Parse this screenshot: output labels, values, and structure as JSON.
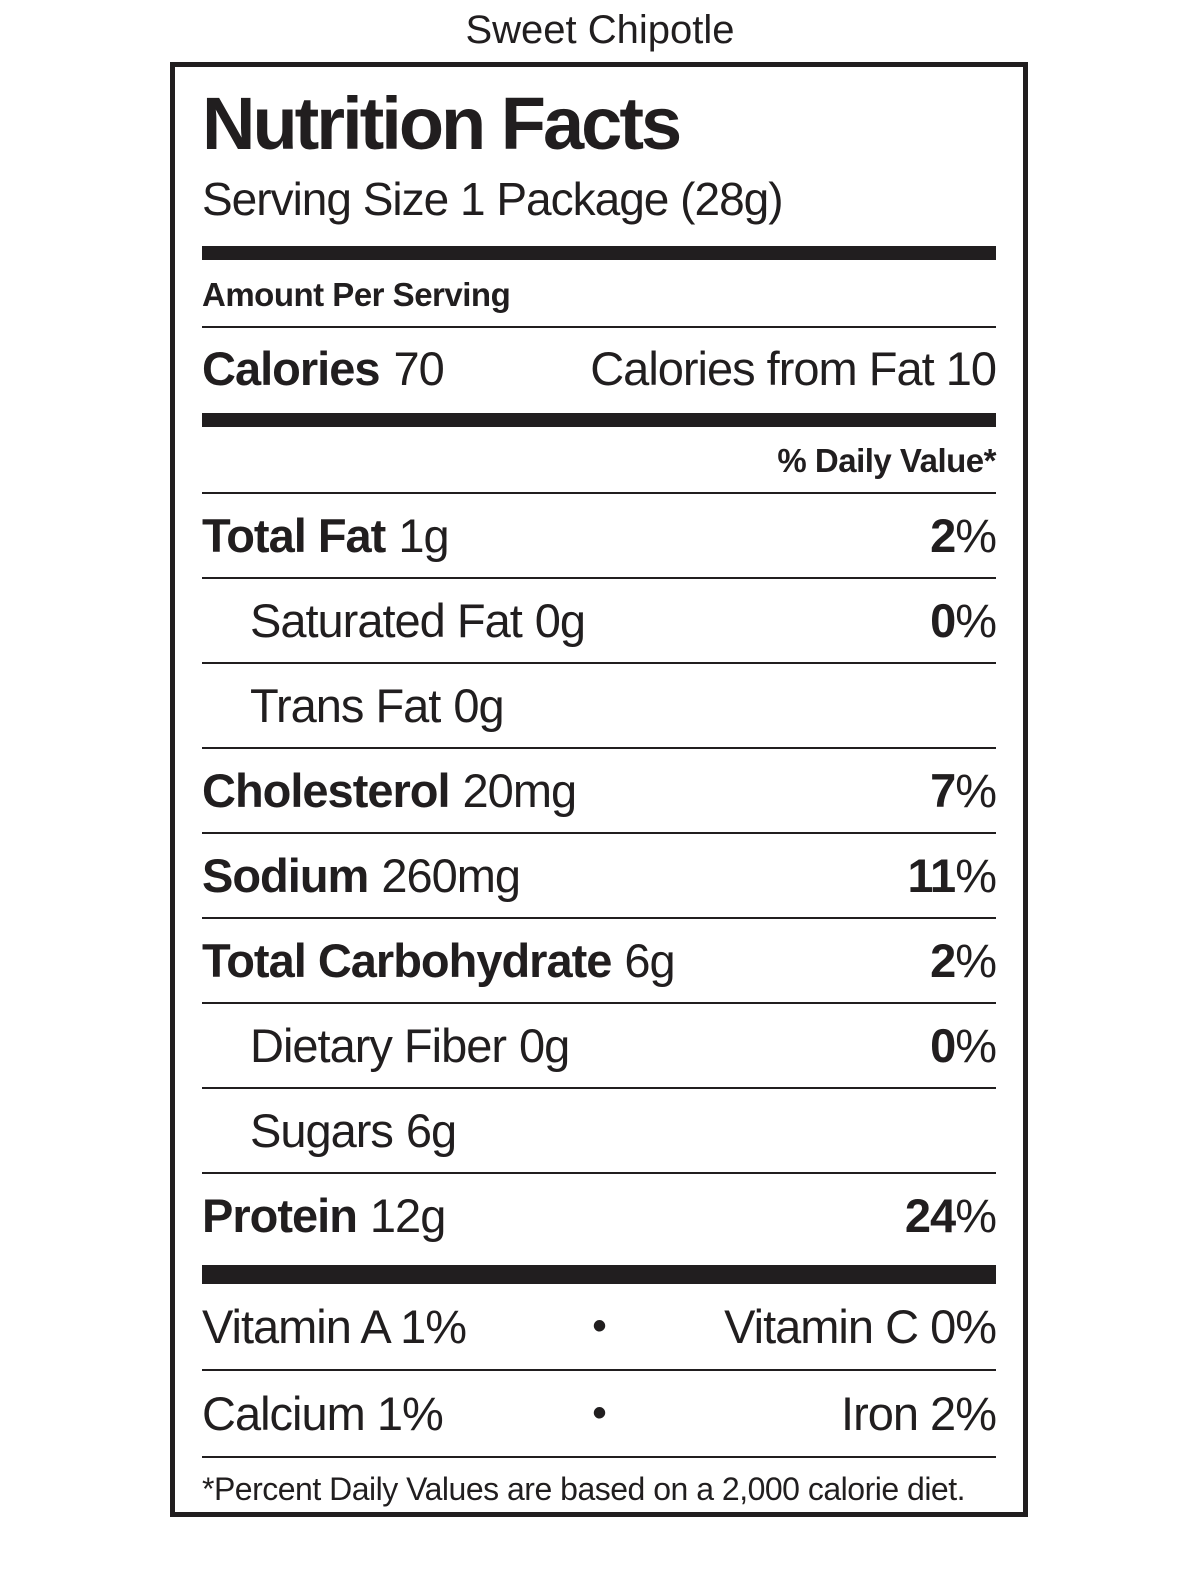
{
  "colors": {
    "ink": "#211e1f",
    "background": "#ffffff"
  },
  "flavor_title": "Sweet Chipotle",
  "label": {
    "title": "Nutrition Facts",
    "serving_size": "Serving Size 1 Package (28g)",
    "amount_per_serving": "Amount Per Serving",
    "calories_label": "Calories",
    "calories_value": "70",
    "calories_from_fat": "Calories from Fat 10",
    "daily_value_header": "% Daily Value*",
    "nutrients": [
      {
        "name": "Total Fat",
        "amount": "1g",
        "dv_num": "2",
        "dv_pct": "%"
      },
      {
        "name": "Saturated Fat",
        "amount": "0g",
        "dv_num": "0",
        "dv_pct": "%"
      },
      {
        "name": "Trans Fat",
        "amount": "0g",
        "dv_num": null,
        "dv_pct": null
      },
      {
        "name": "Cholesterol",
        "amount": "20mg",
        "dv_num": "7",
        "dv_pct": "%"
      },
      {
        "name": "Sodium",
        "amount": "260mg",
        "dv_num": "11",
        "dv_pct": "%"
      },
      {
        "name": "Total Carbohydrate",
        "amount": "6g",
        "dv_num": "2",
        "dv_pct": "%"
      },
      {
        "name": "Dietary Fiber",
        "amount": "0g",
        "dv_num": "0",
        "dv_pct": "%"
      },
      {
        "name": "Sugars",
        "amount": "6g",
        "dv_num": null,
        "dv_pct": null
      },
      {
        "name": "Protein",
        "amount": "12g",
        "dv_num": "24",
        "dv_pct": "%"
      }
    ],
    "micronutrients": [
      {
        "left": "Vitamin A 1%",
        "bullet": "•",
        "right": "Vitamin C 0%"
      },
      {
        "left": "Calcium 1%",
        "bullet": "•",
        "right": "Iron 2%"
      }
    ],
    "footnote": "*Percent Daily Values are based on a 2,000 calorie diet."
  }
}
